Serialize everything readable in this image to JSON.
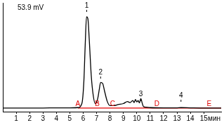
{
  "chart_data": {
    "type": "line",
    "x_label": "мин",
    "xlim": [
      0,
      16.3
    ],
    "xticks": [
      1,
      2,
      3,
      4,
      5,
      6,
      7,
      8,
      9,
      10,
      11,
      12,
      13,
      14,
      15
    ],
    "ylim": [
      0,
      53.9
    ],
    "tick_labels": "x",
    "grid": false,
    "series": [
      {
        "color": "#000000",
        "line_style": "solid",
        "x": [
          0,
          1,
          2,
          3,
          4,
          5,
          5.6,
          5.9,
          6.05,
          6.15,
          6.25,
          6.35,
          6.45,
          6.6,
          6.75,
          6.9,
          7.0,
          7.1,
          7.2,
          7.3,
          7.45,
          7.6,
          7.8,
          8.0,
          8.3,
          8.6,
          9.0,
          9.3,
          9.5,
          9.7,
          9.8,
          9.9,
          10.0,
          10.1,
          10.2,
          10.3,
          10.4,
          10.5,
          10.7,
          11,
          12,
          13,
          13.3,
          14,
          15,
          16.3
        ],
        "values": [
          1.8,
          1.8,
          1.8,
          1.8,
          1.9,
          1.9,
          2.0,
          4,
          15,
          33,
          47,
          46,
          36,
          18,
          8,
          4,
          4.5,
          7,
          11,
          14.5,
          14,
          10,
          5,
          3,
          3,
          3.5,
          4,
          5,
          4.5,
          5.5,
          4.5,
          6,
          4.8,
          5.5,
          4.3,
          6.5,
          4.3,
          2.5,
          2.2,
          2,
          1.9,
          1.9,
          2.0,
          1.9,
          1.8,
          1.8
        ]
      },
      {
        "color": "#e00000",
        "line_style": "solid",
        "x": [
          5.6,
          16.3
        ],
        "values": [
          1.8,
          1.8
        ]
      }
    ],
    "annotations": [
      {
        "text": "53.9 mV",
        "x": 1.1,
        "y": 51.5,
        "color": "#000000"
      },
      {
        "text": "1",
        "x": 6.26,
        "y": 52.5,
        "color": "#000000",
        "marker": "line"
      },
      {
        "text": "2",
        "x": 7.3,
        "y": 19.5,
        "color": "#000000",
        "marker": "line"
      },
      {
        "text": "3",
        "x": 10.3,
        "y": 8.5,
        "color": "#000000",
        "marker": "line"
      },
      {
        "text": "4",
        "x": 13.3,
        "y": 8,
        "color": "#000000",
        "marker": "line"
      },
      {
        "text": "A",
        "x": 5.6,
        "y": 3.8,
        "color": "#e00000"
      },
      {
        "text": "B",
        "x": 7.05,
        "y": 3.8,
        "color": "#e00000"
      },
      {
        "text": "C",
        "x": 8.2,
        "y": 3.8,
        "color": "#e00000"
      },
      {
        "text": "D",
        "x": 11.5,
        "y": 3.8,
        "color": "#e00000"
      },
      {
        "text": "E",
        "x": 15.4,
        "y": 3.8,
        "color": "#e00000"
      }
    ]
  }
}
